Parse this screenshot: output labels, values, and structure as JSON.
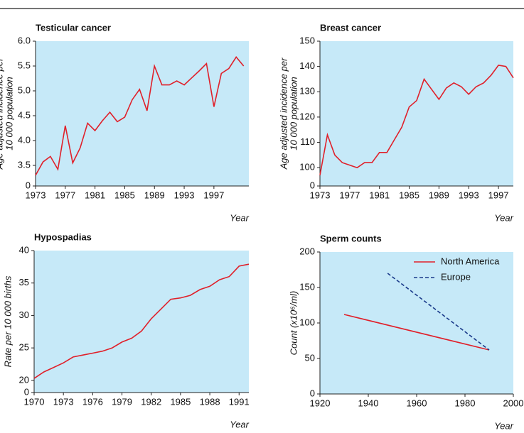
{
  "chart_data": [
    {
      "type": "line",
      "title": "Testicular cancer",
      "ylabel": [
        "Age adjusted incidence per",
        "10 000 population"
      ],
      "xlabel": "Year",
      "x": [
        1973,
        1974,
        1975,
        1976,
        1977,
        1978,
        1979,
        1980,
        1981,
        1982,
        1983,
        1984,
        1985,
        1986,
        1987,
        1988,
        1989,
        1990,
        1991,
        1992,
        1993,
        1994,
        1995,
        1996,
        1997,
        1998,
        1999,
        2000,
        2001
      ],
      "series": [
        {
          "name": "Testicular cancer",
          "color": "#e0202a",
          "values": [
            3.3,
            3.57,
            3.68,
            3.42,
            4.3,
            3.55,
            3.85,
            4.35,
            4.2,
            4.4,
            4.57,
            4.38,
            4.47,
            4.82,
            5.03,
            4.6,
            5.5,
            5.12,
            5.12,
            5.2,
            5.12,
            5.26,
            5.4,
            5.55,
            4.68,
            5.35,
            5.45,
            5.68,
            5.5
          ]
        }
      ],
      "xlim": [
        1973,
        2001.7
      ],
      "xticks": [
        1973,
        1977,
        1981,
        1985,
        1989,
        1993,
        1997
      ],
      "ylim": [
        0,
        6
      ],
      "ybreak": [
        0,
        3.2
      ],
      "yticks": [
        0,
        3.5,
        {
          "value": 4,
          "label": "4.0"
        },
        4.5,
        {
          "value": 5,
          "label": "5.0"
        },
        5.5,
        {
          "value": 6,
          "label": "6.0"
        }
      ]
    },
    {
      "type": "line",
      "title": "Breast cancer",
      "ylabel": [
        "Age adjusted incidence per",
        "10 000 population"
      ],
      "xlabel": "Year",
      "x": [
        1973,
        1974,
        1975,
        1976,
        1977,
        1978,
        1979,
        1980,
        1981,
        1982,
        1983,
        1984,
        1985,
        1986,
        1987,
        1988,
        1989,
        1990,
        1991,
        1992,
        1993,
        1994,
        1995,
        1996,
        1997,
        1998,
        1999
      ],
      "series": [
        {
          "name": "Breast cancer",
          "color": "#e0202a",
          "values": [
            97,
            113,
            105,
            102,
            101,
            100,
            102,
            102,
            106,
            106,
            111,
            116,
            124,
            126.5,
            135,
            131,
            127,
            131.5,
            133.5,
            132,
            129,
            132,
            133.5,
            136.5,
            140.5,
            140,
            135.5
          ]
        }
      ],
      "xlim": [
        1973,
        1999
      ],
      "xticks": [
        1973,
        1977,
        1981,
        1985,
        1989,
        1993,
        1997
      ],
      "ylim": [
        0,
        150
      ],
      "ybreak": [
        0,
        95
      ],
      "yticks": [
        0,
        100,
        110,
        120,
        130,
        140,
        150
      ]
    },
    {
      "type": "line",
      "title": "Hypospadias",
      "ylabel": [
        "Rate per 10 000 births"
      ],
      "xlabel": "Year",
      "x": [
        1970,
        1971,
        1972,
        1973,
        1974,
        1975,
        1976,
        1977,
        1978,
        1979,
        1980,
        1981,
        1982,
        1983,
        1984,
        1985,
        1986,
        1987,
        1988,
        1989,
        1990,
        1991,
        1992
      ],
      "series": [
        {
          "name": "Hypospadias",
          "color": "#e0202a",
          "values": [
            20.3,
            21.3,
            22,
            22.7,
            23.6,
            23.9,
            24.2,
            24.5,
            25,
            25.9,
            26.5,
            27.6,
            29.5,
            31,
            32.5,
            32.7,
            33.1,
            34,
            34.5,
            35.5,
            36,
            37.6,
            37.9
          ]
        }
      ],
      "xlim": [
        1970,
        1992
      ],
      "xticks": [
        1970,
        1973,
        1976,
        1979,
        1982,
        1985,
        1988,
        1991
      ],
      "ylim": [
        0,
        40
      ],
      "ybreak": [
        0,
        19
      ],
      "yticks": [
        0,
        20,
        25,
        30,
        35,
        40
      ]
    },
    {
      "type": "line",
      "title": "Sperm counts",
      "ylabel": [
        "Count (x10⁶/ml)"
      ],
      "xlabel": "Year",
      "legend": "top-right",
      "series": [
        {
          "name": "North America",
          "color": "#e0202a",
          "dash": false,
          "x": [
            1930,
            1990
          ],
          "values": [
            112,
            62
          ]
        },
        {
          "name": "Europe",
          "color": "#1a3a8a",
          "dash": true,
          "x": [
            1948,
            1990
          ],
          "values": [
            170,
            62
          ]
        }
      ],
      "xlim": [
        1920,
        2000
      ],
      "xticks": [
        1920,
        1940,
        1960,
        1980,
        2000
      ],
      "ylim": [
        0,
        200
      ],
      "yticks": [
        0,
        50,
        100,
        150,
        200
      ]
    }
  ]
}
